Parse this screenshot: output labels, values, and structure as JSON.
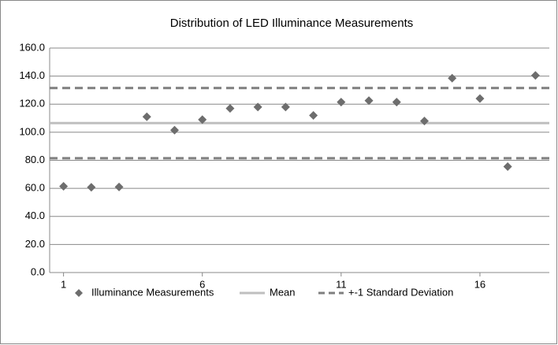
{
  "chart_data": {
    "type": "scatter",
    "title": "Distribution of LED Illuminance Measurements",
    "x": [
      1,
      2,
      3,
      4,
      5,
      6,
      7,
      8,
      9,
      10,
      11,
      12,
      13,
      14,
      15,
      16,
      17,
      18
    ],
    "series": [
      {
        "name": "Illuminance Measurements",
        "color": "#6d6d6d",
        "values": [
          61.5,
          60.8,
          61,
          111,
          101.5,
          109,
          117,
          118,
          118,
          112,
          121.5,
          122.5,
          121.5,
          108,
          138.5,
          124,
          75.5,
          140.5
        ]
      },
      {
        "name": "Mean",
        "color": "#bfbfbf",
        "values": [
          106.5
        ]
      },
      {
        "name": "+-1 Standard Deviation",
        "color": "#7f7f7f",
        "dashed": true,
        "values": [
          81.5,
          131.5
        ]
      }
    ],
    "xlim": [
      0.5,
      18.5
    ],
    "xticks": [
      1,
      6,
      11,
      16
    ],
    "ylim": [
      0,
      160
    ],
    "yticks": [
      {
        "value": 0,
        "label": "0.0"
      },
      {
        "value": 20,
        "label": "20.0"
      },
      {
        "value": 40,
        "label": "40.0"
      },
      {
        "value": 60,
        "label": "60.0"
      },
      {
        "value": 80,
        "label": "80.0"
      },
      {
        "value": 100,
        "label": "100.0"
      },
      {
        "value": 120,
        "label": "120.0"
      },
      {
        "value": 140,
        "label": "140.0"
      },
      {
        "value": 160,
        "label": "160.0"
      }
    ],
    "grid": true,
    "legend": "bottom"
  }
}
